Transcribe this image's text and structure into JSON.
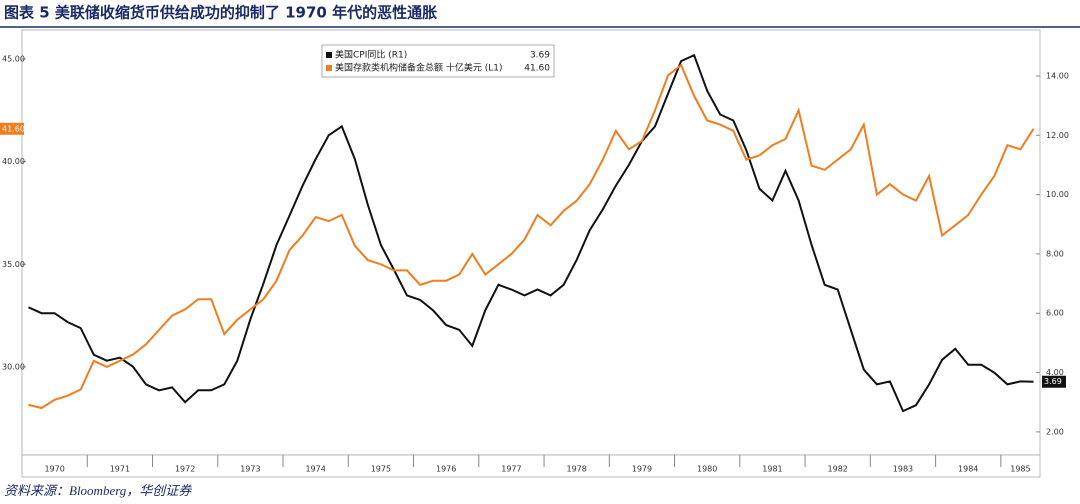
{
  "chart_data": {
    "type": "line",
    "title": "图表 5 美联储收缩货币供给成功的抑制了 1970 年代的恶性通胀",
    "source": "资料来源：Bloomberg，华创证券",
    "categories": [
      null,
      null,
      "1970",
      null,
      null,
      null,
      null,
      "1971",
      null,
      null,
      null,
      null,
      "1972",
      null,
      null,
      null,
      null,
      "1973",
      null,
      null,
      null,
      null,
      "1974",
      null,
      null,
      null,
      null,
      "1975",
      null,
      null,
      null,
      null,
      "1976",
      null,
      null,
      null,
      null,
      "1977",
      null,
      null,
      null,
      null,
      "1978",
      null,
      null,
      null,
      null,
      "1979",
      null,
      null,
      null,
      null,
      "1980",
      null,
      null,
      null,
      null,
      "1981",
      null,
      null,
      null,
      null,
      "1982",
      null,
      null,
      null,
      null,
      "1983",
      null,
      null,
      null,
      null,
      "1984",
      null,
      null,
      null,
      "1985",
      null
    ],
    "series": [
      {
        "name": "美国CPI同比 (R1)",
        "legend_value": "3.69",
        "color": "#111111",
        "axis": "y2",
        "values": [
          6.2,
          6.0,
          6.0,
          5.7,
          5.5,
          4.6,
          4.4,
          4.5,
          4.2,
          3.6,
          3.4,
          3.5,
          3.0,
          3.4,
          3.4,
          3.6,
          4.4,
          5.8,
          7.0,
          8.3,
          9.3,
          10.3,
          11.2,
          12.0,
          12.3,
          11.2,
          9.65,
          8.3,
          7.46,
          6.6,
          6.45,
          6.1,
          5.6,
          5.44,
          4.9,
          6.1,
          6.96,
          6.8,
          6.6,
          6.8,
          6.6,
          6.96,
          7.8,
          8.8,
          9.5,
          10.3,
          11.0,
          11.8,
          12.3,
          13.4,
          14.5,
          14.7,
          13.5,
          12.7,
          12.5,
          11.5,
          10.2,
          9.8,
          10.8,
          9.8,
          8.3,
          6.96,
          6.8,
          5.44,
          4.1,
          3.6,
          3.7,
          2.7,
          2.9,
          3.6,
          4.43,
          4.8,
          4.26,
          4.26,
          4.0,
          3.6,
          3.7,
          3.69
        ]
      },
      {
        "name": "美国存款类机构储备金总额 十亿美元 (L1)",
        "legend_value": "41.60",
        "color": "#f07d1e",
        "values": [
          28.15,
          28.0,
          28.4,
          28.6,
          28.9,
          30.3,
          30.0,
          30.3,
          30.6,
          31.1,
          31.8,
          32.5,
          32.8,
          33.3,
          33.3,
          31.6,
          32.3,
          32.8,
          33.3,
          34.2,
          35.7,
          36.4,
          37.3,
          37.1,
          37.4,
          35.9,
          35.2,
          35.0,
          34.7,
          34.7,
          34.0,
          34.2,
          34.2,
          34.5,
          35.5,
          34.5,
          35.0,
          35.5,
          36.2,
          37.4,
          36.9,
          37.6,
          38.1,
          38.9,
          40.1,
          41.5,
          40.6,
          41.0,
          42.5,
          44.2,
          44.7,
          43.2,
          42.0,
          41.8,
          41.5,
          40.1,
          40.3,
          40.8,
          41.1,
          42.5,
          39.8,
          39.6,
          40.1,
          40.6,
          41.8,
          38.4,
          38.9,
          38.4,
          38.1,
          39.3,
          36.4,
          36.9,
          37.4,
          38.4,
          39.3,
          40.8,
          40.6,
          41.6
        ]
      }
    ],
    "ylim": [
      25.71,
      46.41
    ],
    "yticks": [
      {
        "value": 30,
        "label": "30.00"
      },
      {
        "value": 35,
        "label": "35.00"
      },
      {
        "value": 40,
        "label": "40.00"
      },
      {
        "value": 45,
        "label": "45.00"
      }
    ],
    "y2lim": [
      1.22,
      15.55
    ],
    "y2ticks": [
      {
        "value": 2,
        "label": "2.00"
      },
      {
        "value": 4,
        "label": "4.00"
      },
      {
        "value": 6,
        "label": "6.00"
      },
      {
        "value": 8,
        "label": "8.00"
      },
      {
        "value": 10,
        "label": "10.00"
      },
      {
        "value": 12,
        "label": "12.00"
      },
      {
        "value": 14,
        "label": "14.00"
      }
    ]
  }
}
